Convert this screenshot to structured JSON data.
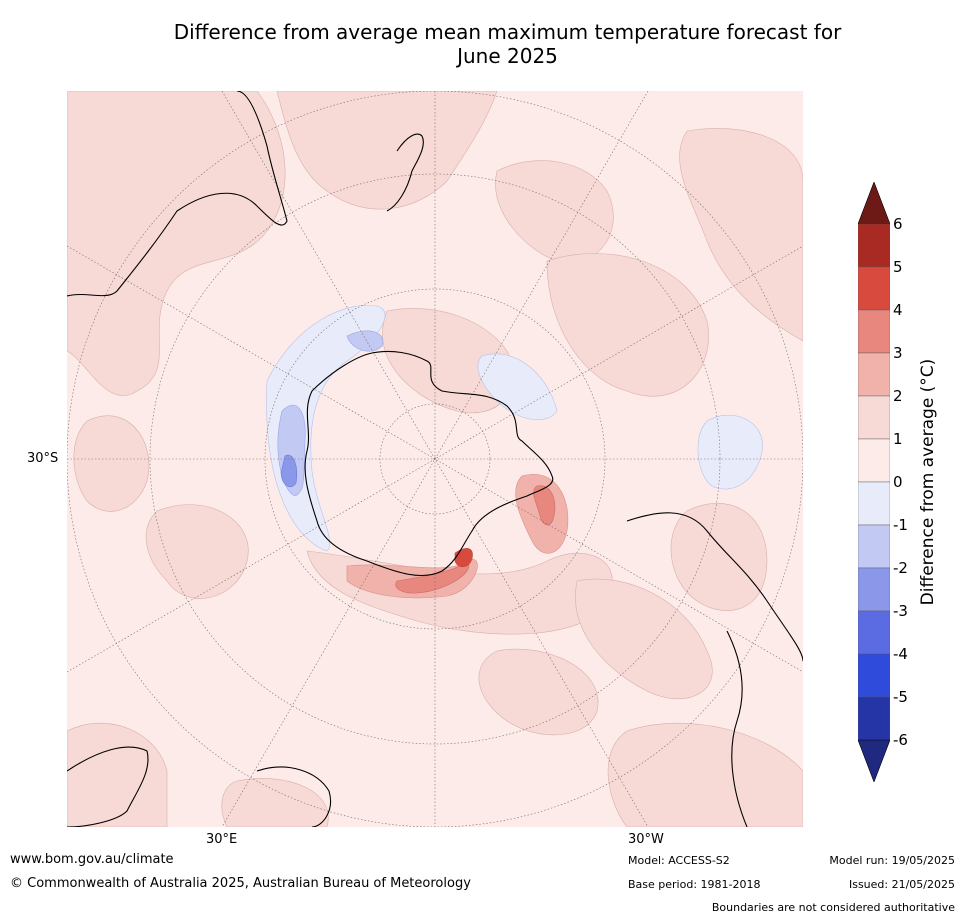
{
  "title": {
    "line1": "Difference from average mean maximum temperature forecast for",
    "line2": "June 2025"
  },
  "map": {
    "lat_label": "30°S",
    "lon_labels": [
      "30°E",
      "30°W"
    ]
  },
  "colorbar": {
    "label": "Difference from average (°C)",
    "ticks": [
      "6",
      "5",
      "4",
      "3",
      "2",
      "1",
      "0",
      "-1",
      "-2",
      "-3",
      "-4",
      "-5",
      "-6"
    ],
    "colors": [
      "#6d1a17",
      "#a82a22",
      "#d84a3e",
      "#e8877e",
      "#f0b2aa",
      "#f7d9d5",
      "#fcebe9",
      "#e8ecfa",
      "#c2c9f2",
      "#8b98ea",
      "#5b6ce2",
      "#2f4bdc",
      "#2635a6",
      "#1f2980"
    ]
  },
  "footer": {
    "website": "www.bom.gov.au/climate",
    "copyright": "© Commonwealth of Australia 2025, Australian Bureau of Meteorology",
    "model": "Model: ACCESS-S2",
    "base_period": "Base period: 1981-2018",
    "model_run": "Model run: 19/05/2025",
    "issued": "Issued: 21/05/2025",
    "disclaimer": "Boundaries are not considered authoritative"
  }
}
